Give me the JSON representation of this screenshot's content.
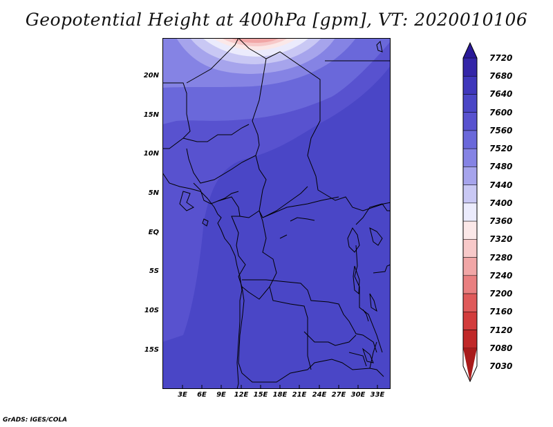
{
  "title": "Geopotential Height at 400hPa [gpm], VT: 2020010106",
  "credit": "GrADS: IGES/COLA",
  "map": {
    "lat_labels": [
      "20N",
      "15N",
      "10N",
      "5N",
      "EQ",
      "5S",
      "10S",
      "15S"
    ],
    "lon_labels": [
      "3E",
      "6E",
      "9E",
      "12E",
      "15E",
      "18E",
      "21E",
      "24E",
      "27E",
      "30E",
      "33E"
    ]
  },
  "legend": {
    "levels": [
      "7720",
      "7680",
      "7640",
      "7600",
      "7560",
      "7520",
      "7480",
      "7440",
      "7400",
      "7360",
      "7320",
      "7280",
      "7240",
      "7200",
      "7160",
      "7120",
      "7080",
      "7030"
    ],
    "colors": [
      "#2a1a98",
      "#3426a8",
      "#3f37bb",
      "#4a46c6",
      "#5852cf",
      "#6a68da",
      "#8583e4",
      "#a6a4ec",
      "#c9c8f4",
      "#ebebfc",
      "#fbe8e8",
      "#f7c9c9",
      "#f1a6a6",
      "#e97f80",
      "#df5a5a",
      "#d23c3c",
      "#c02828",
      "#a81a1a"
    ]
  }
}
